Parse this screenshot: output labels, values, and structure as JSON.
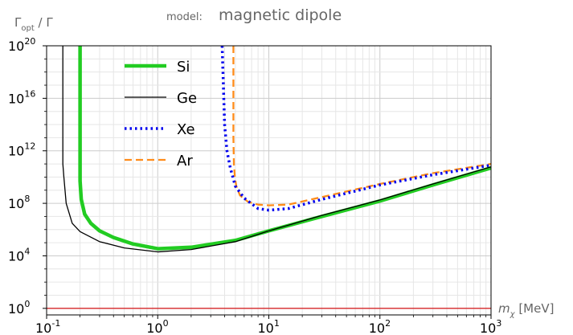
{
  "chart_data": {
    "type": "line",
    "title_prefix": "model:",
    "title": "magnetic dipole",
    "ylabel": {
      "main": "Γ",
      "sub": "opt",
      "rest": " / Γ"
    },
    "xlabel": {
      "main": "m",
      "sub": "χ",
      "rest": " [MeV]"
    },
    "xscale": "log",
    "yscale": "log",
    "xlim": [
      0.1,
      1000
    ],
    "ylim": [
      0.316,
      1e+20
    ],
    "grid": true,
    "legend_position": "top-left",
    "x_ticks": [
      {
        "base": "10",
        "exp": "-1",
        "value": 0.1
      },
      {
        "base": "10",
        "exp": "0",
        "value": 1
      },
      {
        "base": "10",
        "exp": "1",
        "value": 10
      },
      {
        "base": "10",
        "exp": "2",
        "value": 100
      },
      {
        "base": "10",
        "exp": "3",
        "value": 1000
      }
    ],
    "y_ticks": [
      {
        "base": "10",
        "exp": "0",
        "value": 1
      },
      {
        "base": "10",
        "exp": "4",
        "value": 10000.0
      },
      {
        "base": "10",
        "exp": "8",
        "value": 100000000.0
      },
      {
        "base": "10",
        "exp": "12",
        "value": 1000000000000.0
      },
      {
        "base": "10",
        "exp": "16",
        "value": 1e+16
      },
      {
        "base": "10",
        "exp": "20",
        "value": 1e+20
      }
    ],
    "reference_line": {
      "y": 1,
      "color": "#d62728"
    },
    "series": [
      {
        "name": "Si",
        "color": "#22cc22",
        "dash": "solid",
        "x": [
          0.2,
          0.2,
          0.205,
          0.22,
          0.25,
          0.3,
          0.4,
          0.6,
          1,
          2,
          5,
          10,
          30,
          100,
          300,
          1000
        ],
        "y": [
          1e+20,
          5000000000.0,
          200000000.0,
          15000000.0,
          3000000.0,
          800000.0,
          250000.0,
          80000.0,
          35000.0,
          45000.0,
          150000.0,
          800000.0,
          10000000.0,
          150000000.0,
          2500000000.0,
          50000000000.0
        ]
      },
      {
        "name": "Ge",
        "color": "#000000",
        "dash": "solid",
        "x": [
          0.14,
          0.14,
          0.143,
          0.15,
          0.17,
          0.2,
          0.3,
          0.5,
          1,
          2,
          5,
          10,
          30,
          100,
          300,
          1000
        ],
        "y": [
          1e+20,
          100000000000.0,
          10000000000.0,
          100000000.0,
          3000000.0,
          700000.0,
          120000.0,
          40000.0,
          20000.0,
          30000.0,
          120000.0,
          800000.0,
          12000000.0,
          180000000.0,
          3000000000.0,
          60000000000.0
        ]
      },
      {
        "name": "Xe",
        "color": "#0000ee",
        "dash": "dotted",
        "x": [
          3.8,
          3.9,
          4.0,
          4.2,
          4.5,
          5,
          6,
          8,
          10,
          15,
          30,
          100,
          300,
          1000
        ],
        "y": [
          1e+20,
          1e+17,
          100000000000000.0,
          1000000000000.0,
          50000000000.0,
          2000000000.0,
          250000000.0,
          40000000.0,
          30000000.0,
          40000000.0,
          200000000.0,
          2500000000.0,
          15000000000.0,
          80000000000.0
        ]
      },
      {
        "name": "Ar",
        "color": "#ff8c1a",
        "dash": "dashed",
        "x": [
          4.8,
          4.8,
          4.85,
          4.95,
          5.1,
          5.5,
          6.5,
          8,
          10,
          15,
          30,
          100,
          300,
          1000
        ],
        "y": [
          1e+20,
          10000000000000.0,
          100000000000.0,
          10000000000.0,
          2000000000.0,
          400000000.0,
          130000000.0,
          80000000.0,
          70000000.0,
          80000000.0,
          300000000.0,
          3000000000.0,
          20000000000.0,
          100000000000.0
        ]
      }
    ]
  }
}
